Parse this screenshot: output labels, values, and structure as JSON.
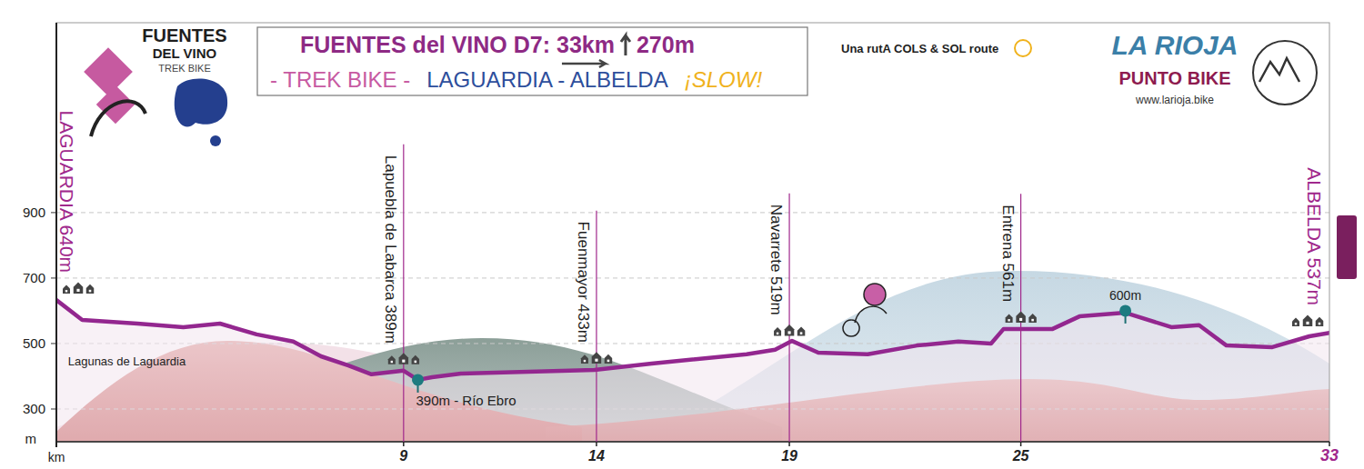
{
  "chart_data": {
    "type": "line",
    "title": "FUENTES del VINO D7: 33km",
    "title_climb": "270m",
    "subtitle": [
      "- TREK BIKE -",
      "LAGUARDIA - ALBELDA",
      "¡SLOW!"
    ],
    "branding": {
      "logo": [
        "FUENTES",
        "DEL VINO",
        "TREK BIKE"
      ],
      "route": "Una rutA COLS & SOL route",
      "region": "LA RIOJA",
      "brand": "PUNTO BIKE",
      "url": "www.larioja.bike"
    },
    "x_label": "km",
    "y_label": "m",
    "x": [
      0,
      0.67,
      2.1,
      3.29,
      4.24,
      5.19,
      6.14,
      6.86,
      7.57,
      8.17,
      9,
      9.37,
      9.74,
      10.49,
      13.95,
      15.43,
      17.89,
      18.63,
      19.07,
      19.75,
      21.03,
      22.31,
      23.38,
      24.23,
      24.55,
      25.81,
      26.52,
      27.71,
      28.9,
      29.62,
      30.33,
      31.52,
      32.48,
      33
    ],
    "values": [
      633,
      572,
      561,
      550,
      561,
      528,
      506,
      461,
      433,
      406,
      417,
      389,
      397,
      408,
      419,
      439,
      467,
      481,
      508,
      472,
      467,
      494,
      506,
      500,
      544,
      544,
      583,
      594,
      550,
      556,
      494,
      489,
      522,
      533
    ],
    "color": "#93278f",
    "xlim": [
      0,
      33
    ],
    "xticks": [
      9,
      14,
      19,
      25,
      33
    ],
    "ylim": [
      200,
      1480
    ],
    "yticks": [
      300,
      500,
      700,
      900
    ],
    "grid": true,
    "towns": [
      {
        "label": "LAGUARDIA 640m",
        "km": 0
      },
      {
        "label": "Lapuebla de Labarca 389m",
        "km": 9
      },
      {
        "label": "Fuenmayor 433m",
        "km": 14
      },
      {
        "label": "Navarrete 519m",
        "km": 19
      },
      {
        "label": "Entrena 561m",
        "km": 25
      },
      {
        "label": "ALBELDA 537m",
        "km": 33
      }
    ],
    "annotations": [
      {
        "text": "Lagunas de Laguardia",
        "x": 0.3,
        "y": 433
      },
      {
        "text": "390m - Río Ebro",
        "x": 9.37,
        "y": 389,
        "marker": "circle"
      },
      {
        "text": "600m",
        "x": 27.71,
        "y": 600,
        "marker": "circle"
      }
    ]
  }
}
